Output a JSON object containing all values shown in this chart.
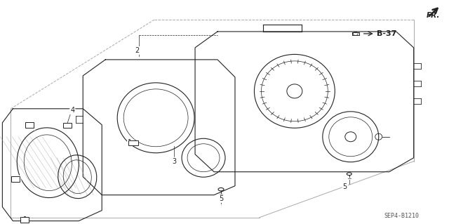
{
  "background_color": "#ffffff",
  "part_number": "SEP4-B1210",
  "ref_label": "B-37",
  "fr_label": "FR.",
  "line_color": "#222222",
  "gray": "#aaaaaa"
}
